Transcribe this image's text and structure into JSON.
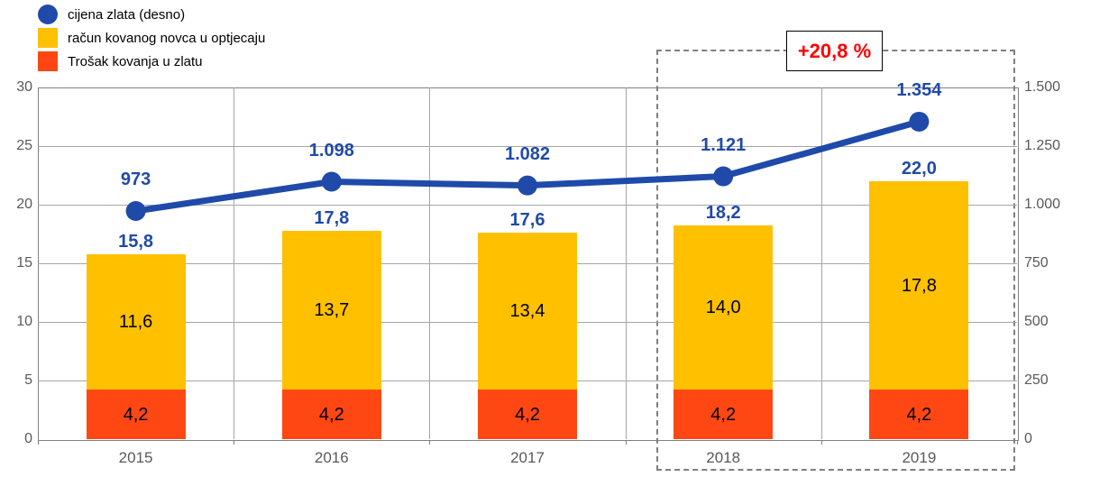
{
  "legend": {
    "items": [
      {
        "label": "cijena zlata (desno)",
        "marker": "circle",
        "color": "#1F4AA9"
      },
      {
        "label": "račun kovanog novca u optjecaju",
        "marker": "square",
        "color": "#FFC000"
      },
      {
        "label": "Trošak kovanja u zlatu",
        "marker": "square",
        "color": "#FF4713"
      }
    ]
  },
  "annotation": {
    "text": "+20,8 %",
    "color": "#FF0000"
  },
  "colors": {
    "line_blue": "#1F4AA9",
    "bar_yellow": "#FFC000",
    "bar_orange": "#FF4713",
    "grid_gray": "#A6A6A6",
    "axis_text_gray": "#595959",
    "highlight_dash_gray": "#7F7F7F",
    "annotation_red": "#FF0000"
  },
  "chart_data": {
    "type": "combo",
    "categories": [
      "2015",
      "2016",
      "2017",
      "2018",
      "2019"
    ],
    "series": [
      {
        "name": "Trošak kovanja u zlatu",
        "type": "bar",
        "stack_order": 0,
        "axis": "left",
        "color": "#FF4713",
        "values": [
          4.2,
          4.2,
          4.2,
          4.2,
          4.2
        ],
        "labels": [
          "4,2",
          "4,2",
          "4,2",
          "4,2",
          "4,2"
        ]
      },
      {
        "name": "račun kovanog novca u optjecaju",
        "type": "bar",
        "stack_order": 1,
        "axis": "left",
        "color": "#FFC000",
        "values": [
          11.6,
          13.7,
          13.4,
          14.0,
          17.8
        ],
        "labels": [
          "11,6",
          "13,7",
          "13,4",
          "14,0",
          "17,8"
        ]
      },
      {
        "name": "cijena zlata (desno)",
        "type": "line",
        "axis": "right",
        "color": "#1F4AA9",
        "values": [
          973,
          1098,
          1082,
          1121,
          1354
        ],
        "labels": [
          "973",
          "1.098",
          "1.082",
          "1.121",
          "1.354"
        ]
      }
    ],
    "stack_totals": {
      "values": [
        15.8,
        17.8,
        17.6,
        18.2,
        22.0
      ],
      "labels": [
        "15,8",
        "17,8",
        "17,6",
        "18,2",
        "22,0"
      ]
    },
    "left_axis": {
      "min": 0,
      "max": 30,
      "ticks": [
        "30",
        "25",
        "20",
        "15",
        "10",
        "5",
        "0"
      ]
    },
    "right_axis": {
      "min": 0,
      "max": 1500,
      "ticks": [
        "1.500",
        "1.250",
        "1.000",
        "750",
        "500",
        "250",
        "0"
      ]
    },
    "grid": true,
    "legend_position": "top-left",
    "highlight_box": {
      "categories": [
        "2018",
        "2019"
      ],
      "label": "+20,8 %"
    }
  }
}
